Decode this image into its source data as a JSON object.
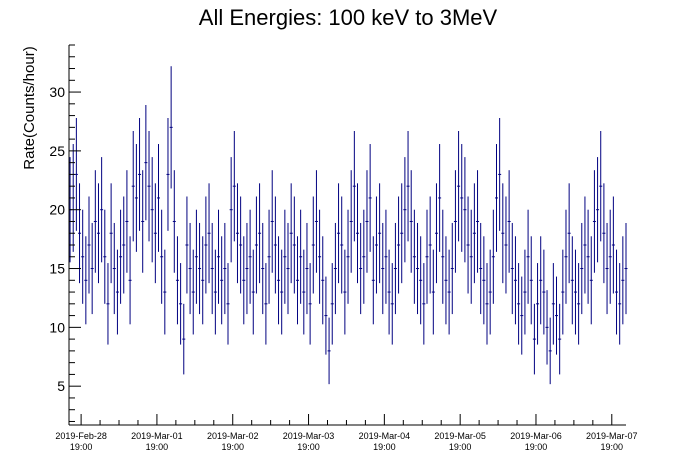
{
  "chart_data": {
    "type": "scatter",
    "title": "All Energies:  100 keV to 3MeV",
    "xlabel": "",
    "ylabel": "Rate(Counts/hour)",
    "xlim": [
      "2019-Feb-28 15:10",
      "2019-Mar-07 23:30"
    ],
    "ylim": [
      1.7,
      34
    ],
    "y_ticks": [
      5,
      10,
      15,
      20,
      25,
      30
    ],
    "x_ticks": [
      {
        "date": "2019-Feb-28",
        "time": "19:00"
      },
      {
        "date": "2019-Mar-01",
        "time": "19:00"
      },
      {
        "date": "2019-Mar-02",
        "time": "19:00"
      },
      {
        "date": "2019-Mar-03",
        "time": "19:00"
      },
      {
        "date": "2019-Mar-04",
        "time": "19:00"
      },
      {
        "date": "2019-Mar-05",
        "time": "19:00"
      },
      {
        "date": "2019-Mar-06",
        "time": "19:00"
      },
      {
        "date": "2019-Mar-07",
        "time": "19:00"
      }
    ],
    "grid": false,
    "series": [
      {
        "marker": "point-with-error-bars",
        "error": "sqrt",
        "x_start": "2019-Feb-28 15:30",
        "x_step_hours": 1,
        "values": [
          20,
          21,
          23,
          18,
          16,
          14,
          17,
          15,
          19,
          18,
          20,
          16,
          12,
          18,
          15,
          13,
          16,
          17,
          19,
          14,
          22,
          21,
          23,
          19,
          24,
          22,
          20,
          18,
          21,
          16,
          13,
          23,
          27,
          19,
          14,
          12,
          9,
          17,
          15,
          13,
          16,
          15,
          14,
          17,
          18,
          15,
          13,
          16,
          14,
          15,
          12,
          20,
          22,
          18,
          17,
          14,
          15,
          16,
          13,
          17,
          18,
          15,
          12,
          16,
          19,
          17,
          14,
          13,
          16,
          15,
          18,
          17,
          14,
          16,
          13,
          15,
          12,
          17,
          19,
          16,
          14,
          11,
          8,
          12,
          15,
          18,
          17,
          13,
          16,
          19,
          22,
          18,
          15,
          16,
          19,
          21,
          14,
          17,
          18,
          15,
          16,
          13,
          12,
          15,
          17,
          18,
          20,
          22,
          19,
          16,
          15,
          14,
          12,
          16,
          17,
          13,
          18,
          21,
          16,
          14,
          13,
          15,
          19,
          22,
          21,
          20,
          17,
          16,
          18,
          19,
          15,
          14,
          12,
          13,
          16,
          21,
          23,
          18,
          17,
          19,
          15,
          14,
          12,
          11,
          13,
          16,
          14,
          9,
          12,
          14,
          13,
          10,
          8,
          12,
          11,
          9,
          13,
          16,
          18,
          14,
          13,
          12,
          15,
          17,
          16,
          14,
          19,
          20,
          22,
          18,
          15,
          16,
          17,
          13,
          12,
          14,
          15,
          18,
          21,
          20,
          19,
          17,
          16,
          15,
          13,
          14,
          12,
          11,
          13,
          15,
          17,
          16,
          14,
          13,
          18,
          21,
          19,
          22,
          18,
          20,
          16,
          14,
          12,
          6,
          10,
          13,
          15,
          17,
          19,
          22,
          24,
          20,
          18,
          16,
          14,
          13,
          11,
          10,
          12,
          15,
          17,
          16,
          13,
          14,
          15,
          17,
          16,
          14,
          12,
          13,
          15,
          17,
          18,
          19,
          17,
          15,
          14,
          12,
          13,
          15,
          16,
          17,
          18,
          16,
          14,
          13,
          12,
          10,
          14,
          17,
          16,
          15,
          17,
          19,
          18,
          16,
          14,
          15,
          17,
          16,
          14,
          12,
          13,
          16,
          18,
          19,
          21,
          20,
          17,
          15,
          10,
          14,
          16,
          17,
          15
        ]
      }
    ]
  },
  "colors": {
    "data": "#000080",
    "axis": "#000000",
    "background": "#ffffff"
  }
}
